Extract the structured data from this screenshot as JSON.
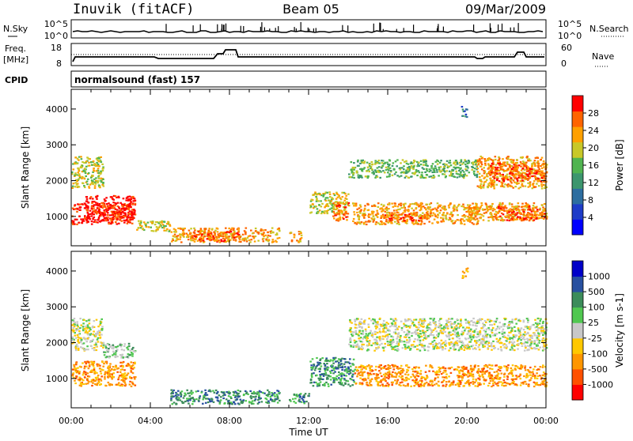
{
  "header": {
    "station": "Inuvik (fitACF)",
    "beam": "Beam 05",
    "date": "09/Mar/2009"
  },
  "summary_panels": {
    "nsky": {
      "label": "N.Sky",
      "ticks_left": [
        "10^5",
        "10^0"
      ],
      "ticks_right": [
        "10^5",
        "10^0"
      ],
      "right_label": "N.Search"
    },
    "freq": {
      "label_line1": "Freq.",
      "label_line2": "[MHz]",
      "ticks_left": [
        "18",
        "8"
      ],
      "ticks_right": [
        "60",
        "0"
      ],
      "right_label": "Nave"
    },
    "cpid": {
      "label": "CPID",
      "value": "normalsound (fast) 157"
    }
  },
  "chart_data": [
    {
      "type": "heatmap",
      "title": "",
      "parameter": "Power",
      "xlabel": "",
      "ylabel": "Slant Range [km]",
      "xlim": [
        0,
        24
      ],
      "ylim": [
        180,
        4550
      ],
      "yticks": [
        1000,
        2000,
        3000,
        4000
      ],
      "colorbar": {
        "label": "Power [dB]",
        "tick_labels": [
          "28",
          "24",
          "20",
          "16",
          "12",
          "8",
          "4"
        ],
        "colors": [
          "#0000ff",
          "#1e3cc8",
          "#2d6ea0",
          "#3c966e",
          "#50b450",
          "#c8c828",
          "#ffa000",
          "#ff6400",
          "#ff0000"
        ]
      },
      "regions": [
        {
          "x": [
            0,
            3.2
          ],
          "y": [
            800,
            1400
          ],
          "level": 8
        },
        {
          "x": [
            0.7,
            3.2
          ],
          "y": [
            900,
            1600
          ],
          "level": 8
        },
        {
          "x": [
            0,
            1.6
          ],
          "y": [
            1800,
            2700
          ],
          "level": 5
        },
        {
          "x": [
            3.2,
            5
          ],
          "y": [
            600,
            900
          ],
          "level": 5
        },
        {
          "x": [
            5,
            10.5
          ],
          "y": [
            300,
            700
          ],
          "level": 6
        },
        {
          "x": [
            6,
            8.5
          ],
          "y": [
            300,
            600
          ],
          "level": 7
        },
        {
          "x": [
            11,
            11.6
          ],
          "y": [
            300,
            600
          ],
          "level": 6
        },
        {
          "x": [
            12,
            14
          ],
          "y": [
            1100,
            1700
          ],
          "level": 5
        },
        {
          "x": [
            13.2,
            14
          ],
          "y": [
            900,
            1400
          ],
          "level": 7
        },
        {
          "x": [
            14.2,
            20.5
          ],
          "y": [
            800,
            1400
          ],
          "level": 6
        },
        {
          "x": [
            15.5,
            18
          ],
          "y": [
            900,
            1100
          ],
          "level": 7
        },
        {
          "x": [
            20,
            24
          ],
          "y": [
            900,
            1400
          ],
          "level": 6
        },
        {
          "x": [
            21.5,
            24
          ],
          "y": [
            900,
            1300
          ],
          "level": 7
        },
        {
          "x": [
            14,
            20.5
          ],
          "y": [
            2100,
            2600
          ],
          "level": 4
        },
        {
          "x": [
            20.5,
            24
          ],
          "y": [
            1800,
            2700
          ],
          "level": 6
        },
        {
          "x": [
            21,
            24
          ],
          "y": [
            2000,
            2500
          ],
          "level": 7
        },
        {
          "x": [
            19.7,
            20
          ],
          "y": [
            3800,
            4100
          ],
          "level": 2
        }
      ]
    },
    {
      "type": "heatmap",
      "title": "",
      "parameter": "Velocity",
      "xlabel": "Time UT",
      "ylabel": "Slant Range [km]",
      "xlim": [
        0,
        24
      ],
      "ylim": [
        180,
        4550
      ],
      "yticks": [
        1000,
        2000,
        3000,
        4000
      ],
      "xtick_labels": [
        "00:00",
        "04:00",
        "08:00",
        "12:00",
        "16:00",
        "20:00",
        "00:00"
      ],
      "colorbar": {
        "label": "Velocity [m s-1]",
        "tick_labels": [
          "1000",
          "500",
          "100",
          "25",
          "-25",
          "-100",
          "-500",
          "-1000"
        ],
        "colors": [
          "#ff0000",
          "#ff5000",
          "#ff9600",
          "#ffc800",
          "#c8c8c8",
          "#50c850",
          "#3c8c5a",
          "#2850a0",
          "#0000c8"
        ]
      },
      "regions": [
        {
          "x": [
            0,
            3.2
          ],
          "y": [
            800,
            1500
          ],
          "level": 2
        },
        {
          "x": [
            0,
            1.6
          ],
          "y": [
            1800,
            2700
          ],
          "level": 4
        },
        {
          "x": [
            1.6,
            3.2
          ],
          "y": [
            1600,
            2000
          ],
          "level": 5
        },
        {
          "x": [
            5,
            10.5
          ],
          "y": [
            300,
            700
          ],
          "level": 6
        },
        {
          "x": [
            11,
            12
          ],
          "y": [
            300,
            600
          ],
          "level": 6
        },
        {
          "x": [
            12,
            14.3
          ],
          "y": [
            800,
            1600
          ],
          "level": 6
        },
        {
          "x": [
            14.3,
            20.5
          ],
          "y": [
            800,
            1400
          ],
          "level": 2
        },
        {
          "x": [
            20.5,
            24
          ],
          "y": [
            800,
            1400
          ],
          "level": 2
        },
        {
          "x": [
            14,
            24
          ],
          "y": [
            1800,
            2700
          ],
          "level": 4
        },
        {
          "x": [
            19.7,
            20
          ],
          "y": [
            3800,
            4100
          ],
          "level": 3
        }
      ]
    }
  ]
}
